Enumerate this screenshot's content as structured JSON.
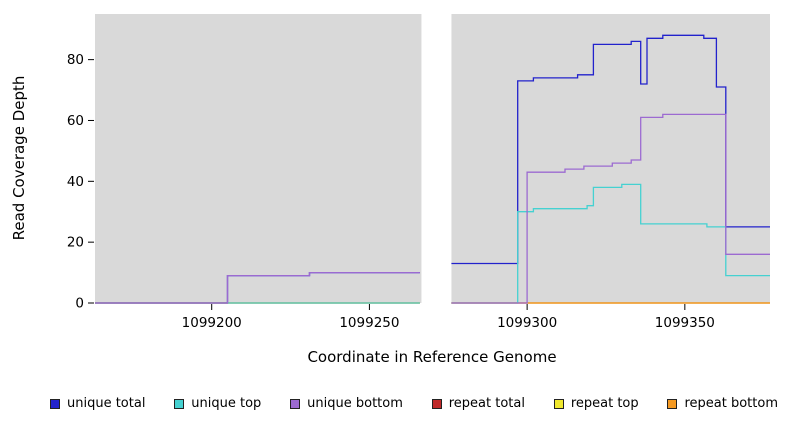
{
  "chart_data": {
    "type": "line",
    "subtype": "step-coverage-plot",
    "title": "",
    "xlabel": "Coordinate in Reference Genome",
    "ylabel": "Read Coverage Depth",
    "xlim": [
      1099163,
      1099377
    ],
    "ylim": [
      0,
      95
    ],
    "x_tick_values": [
      1099200,
      1099250,
      1099300,
      1099350
    ],
    "y_tick_values": [
      0,
      20,
      40,
      60,
      80
    ],
    "grid": false,
    "panel_bg": "#d9d9d9",
    "gap_region": [
      1099266.5,
      1099276
    ],
    "legend_position": "bottom",
    "legend": [
      {
        "label": "unique total",
        "color": "#2222cc"
      },
      {
        "label": "unique top",
        "color": "#45d1d1"
      },
      {
        "label": "unique bottom",
        "color": "#9c6ad1"
      },
      {
        "label": "repeat total",
        "color": "#c02a2a"
      },
      {
        "label": "repeat top",
        "color": "#f0e82e"
      },
      {
        "label": "repeat bottom",
        "color": "#f59a23"
      }
    ],
    "series": [
      {
        "name": "repeat total",
        "color": "#c02a2a",
        "segments": [
          [
            [
              1099163,
              0
            ],
            [
              1099266,
              0
            ]
          ],
          [
            [
              1099276,
              0
            ],
            [
              1099377,
              0
            ]
          ]
        ]
      },
      {
        "name": "repeat top",
        "color": "#f0e82e",
        "segments": [
          [
            [
              1099163,
              0
            ],
            [
              1099266,
              0
            ]
          ],
          [
            [
              1099276,
              0
            ],
            [
              1099377,
              0
            ]
          ]
        ]
      },
      {
        "name": "repeat bottom",
        "color": "#f59a23",
        "segments": [
          [
            [
              1099163,
              0
            ],
            [
              1099266,
              0
            ]
          ],
          [
            [
              1099276,
              0
            ],
            [
              1099377,
              0
            ]
          ]
        ]
      },
      {
        "name": "unique total",
        "color": "#2222cc",
        "segments": [
          [
            [
              1099163,
              0
            ],
            [
              1099205,
              0
            ],
            [
              1099205,
              9
            ],
            [
              1099231,
              9
            ],
            [
              1099231,
              10
            ],
            [
              1099266,
              10
            ]
          ],
          [
            [
              1099276,
              13
            ],
            [
              1099297,
              13
            ],
            [
              1099297,
              73
            ],
            [
              1099302,
              73
            ],
            [
              1099302,
              74
            ],
            [
              1099316,
              74
            ],
            [
              1099316,
              75
            ],
            [
              1099321,
              75
            ],
            [
              1099321,
              85
            ],
            [
              1099333,
              85
            ],
            [
              1099333,
              86
            ],
            [
              1099336,
              86
            ],
            [
              1099336,
              72
            ],
            [
              1099338,
              72
            ],
            [
              1099338,
              87
            ],
            [
              1099343,
              87
            ],
            [
              1099343,
              88
            ],
            [
              1099356,
              88
            ],
            [
              1099356,
              87
            ],
            [
              1099360,
              87
            ],
            [
              1099360,
              71
            ],
            [
              1099363,
              71
            ],
            [
              1099363,
              25
            ],
            [
              1099377,
              25
            ]
          ]
        ]
      },
      {
        "name": "unique top",
        "color": "#45d1d1",
        "segments": [
          [
            [
              1099163,
              0
            ],
            [
              1099266,
              0
            ]
          ],
          [
            [
              1099276,
              0
            ],
            [
              1099297,
              0
            ],
            [
              1099297,
              30
            ],
            [
              1099302,
              30
            ],
            [
              1099302,
              31
            ],
            [
              1099319,
              31
            ],
            [
              1099319,
              32
            ],
            [
              1099321,
              32
            ],
            [
              1099321,
              38
            ],
            [
              1099330,
              38
            ],
            [
              1099330,
              39
            ],
            [
              1099336,
              39
            ],
            [
              1099336,
              26
            ],
            [
              1099357,
              26
            ],
            [
              1099357,
              25
            ],
            [
              1099363,
              25
            ],
            [
              1099363,
              9
            ],
            [
              1099377,
              9
            ]
          ]
        ]
      },
      {
        "name": "unique bottom",
        "color": "#9c6ad1",
        "segments": [
          [
            [
              1099163,
              0
            ],
            [
              1099205,
              0
            ],
            [
              1099205,
              9
            ],
            [
              1099231,
              9
            ],
            [
              1099231,
              10
            ],
            [
              1099266,
              10
            ]
          ],
          [
            [
              1099276,
              0
            ],
            [
              1099300,
              0
            ],
            [
              1099300,
              43
            ],
            [
              1099312,
              43
            ],
            [
              1099312,
              44
            ],
            [
              1099318,
              44
            ],
            [
              1099318,
              45
            ],
            [
              1099327,
              45
            ],
            [
              1099327,
              46
            ],
            [
              1099333,
              46
            ],
            [
              1099333,
              47
            ],
            [
              1099336,
              47
            ],
            [
              1099336,
              61
            ],
            [
              1099343,
              61
            ],
            [
              1099343,
              62
            ],
            [
              1099363,
              62
            ],
            [
              1099363,
              16
            ],
            [
              1099377,
              16
            ]
          ]
        ]
      }
    ]
  }
}
